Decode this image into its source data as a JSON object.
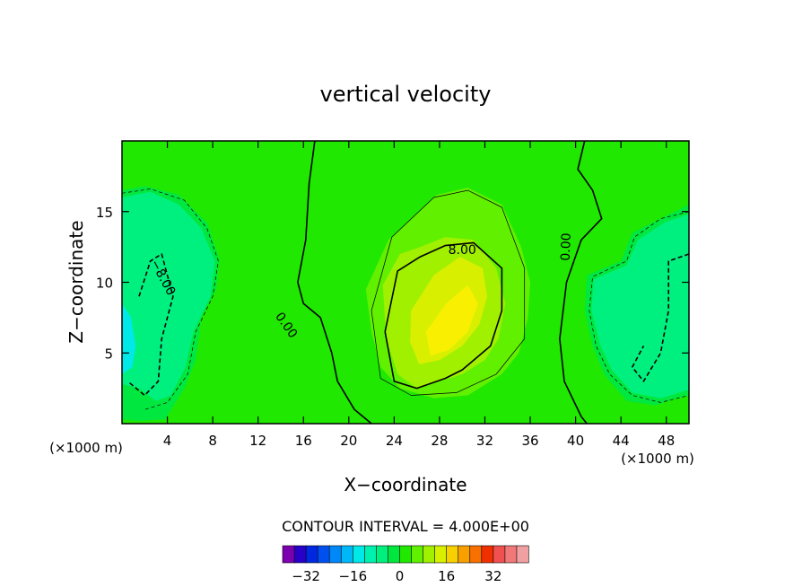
{
  "chart_data": {
    "type": "heatmap",
    "title": "vertical velocity",
    "xlabel": "X−coordinate",
    "ylabel": "Z−coordinate",
    "x_unit_left": "(×1000 m)",
    "x_unit_right": "(×1000 m)",
    "xlim": [
      0,
      50
    ],
    "ylim": [
      0,
      20
    ],
    "x_ticks": [
      4,
      8,
      12,
      16,
      20,
      24,
      28,
      32,
      36,
      40,
      44,
      48
    ],
    "y_ticks": [
      5,
      10,
      15
    ],
    "contour_interval_label": "CONTOUR INTERVAL = 4.000E+00",
    "contour_labels": [
      {
        "text": "8.00",
        "x": 30.0,
        "y": 12.0
      },
      {
        "text": "0.00",
        "x": 39.5,
        "y": 12.5
      },
      {
        "text": "−8.00",
        "x": 3.3,
        "y": 10.2
      },
      {
        "text": "0.00",
        "x": 14.2,
        "y": 6.8
      }
    ],
    "colorbar": {
      "colors": [
        "#7a00b0",
        "#2800c8",
        "#0028e0",
        "#0050f0",
        "#0088f8",
        "#00b8f8",
        "#00e8e8",
        "#00f0b0",
        "#00f080",
        "#00e840",
        "#20e800",
        "#60f000",
        "#a0f000",
        "#d8f000",
        "#f8d000",
        "#f8a000",
        "#f87000",
        "#f03000",
        "#f05050",
        "#f07878",
        "#f0a0a0"
      ],
      "tick_labels": [
        "−32",
        "−16",
        "0",
        "16",
        "32"
      ],
      "tick_values": [
        -32,
        -16,
        0,
        16,
        32
      ],
      "range": [
        -40,
        44
      ]
    },
    "field": {
      "background_level": 0,
      "features": [
        {
          "sign": "positive",
          "center_x": 29.5,
          "center_z": 7.8,
          "max_w": 15
        },
        {
          "sign": "negative",
          "center_x": 3.5,
          "center_z": 8.0,
          "min_w": -12
        },
        {
          "sign": "negative",
          "center_x": 46.0,
          "center_z": 6.5,
          "min_w": -11
        }
      ]
    }
  }
}
